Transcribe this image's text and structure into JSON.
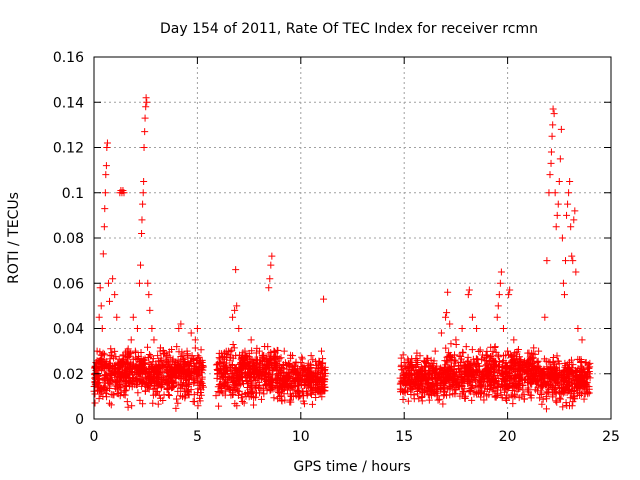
{
  "chart_data": {
    "type": "scatter",
    "title": "Day 154 of 2011, Rate Of TEC Index for receiver rcmn",
    "xlabel": "GPS time / hours",
    "ylabel": "ROTI / TECUs",
    "xlim": [
      0,
      25
    ],
    "ylim": [
      0,
      0.16
    ],
    "xticks": [
      0,
      5,
      10,
      15,
      20,
      25
    ],
    "yticks": [
      0,
      0.02,
      0.04,
      0.06,
      0.08,
      0.1,
      0.12,
      0.14,
      0.16
    ],
    "xtick_labels": [
      "0",
      "5",
      "10",
      "15",
      "20",
      "25"
    ],
    "ytick_labels": [
      "0",
      "0.02",
      "0.04",
      "0.06",
      "0.08",
      "0.1",
      "0.12",
      "0.14",
      "0.16"
    ],
    "grid": true,
    "legend": "none",
    "marker": "plus",
    "color": "#ff0000",
    "series": [
      {
        "points": [
          [
            0.05,
            0.02
          ],
          [
            0.15,
            0.03
          ],
          [
            0.25,
            0.045
          ],
          [
            0.3,
            0.058
          ],
          [
            0.35,
            0.05
          ],
          [
            0.4,
            0.04
          ],
          [
            0.45,
            0.073
          ],
          [
            0.5,
            0.085
          ],
          [
            0.52,
            0.093
          ],
          [
            0.55,
            0.1
          ],
          [
            0.57,
            0.108
          ],
          [
            0.6,
            0.112
          ],
          [
            0.62,
            0.12
          ],
          [
            0.65,
            0.122
          ],
          [
            0.7,
            0.06
          ],
          [
            0.75,
            0.052
          ],
          [
            0.9,
            0.062
          ],
          [
            1.0,
            0.055
          ],
          [
            1.1,
            0.045
          ],
          [
            1.25,
            0.1
          ],
          [
            1.3,
            0.101
          ],
          [
            1.35,
            0.1
          ],
          [
            1.4,
            0.101
          ],
          [
            1.45,
            0.1
          ],
          [
            1.6,
            0.03
          ],
          [
            1.8,
            0.035
          ],
          [
            1.9,
            0.045
          ],
          [
            2.0,
            0.03
          ],
          [
            2.1,
            0.04
          ],
          [
            2.2,
            0.06
          ],
          [
            2.25,
            0.068
          ],
          [
            2.3,
            0.082
          ],
          [
            2.32,
            0.088
          ],
          [
            2.35,
            0.095
          ],
          [
            2.38,
            0.1
          ],
          [
            2.4,
            0.105
          ],
          [
            2.42,
            0.12
          ],
          [
            2.45,
            0.127
          ],
          [
            2.47,
            0.133
          ],
          [
            2.5,
            0.138
          ],
          [
            2.52,
            0.142
          ],
          [
            2.55,
            0.14
          ],
          [
            2.6,
            0.06
          ],
          [
            2.65,
            0.055
          ],
          [
            2.7,
            0.048
          ],
          [
            2.8,
            0.04
          ],
          [
            2.9,
            0.035
          ],
          [
            3.2,
            0.03
          ],
          [
            3.5,
            0.028
          ],
          [
            4.0,
            0.032
          ],
          [
            4.1,
            0.04
          ],
          [
            4.2,
            0.042
          ],
          [
            4.5,
            0.03
          ],
          [
            4.7,
            0.038
          ],
          [
            4.9,
            0.035
          ],
          [
            5.0,
            0.04
          ],
          [
            5.1,
            0.025
          ],
          [
            6.5,
            0.03
          ],
          [
            6.7,
            0.045
          ],
          [
            6.8,
            0.048
          ],
          [
            6.85,
            0.066
          ],
          [
            6.9,
            0.05
          ],
          [
            7.0,
            0.04
          ],
          [
            7.3,
            0.03
          ],
          [
            7.6,
            0.035
          ],
          [
            8.0,
            0.03
          ],
          [
            8.2,
            0.028
          ],
          [
            8.4,
            0.032
          ],
          [
            8.45,
            0.058
          ],
          [
            8.5,
            0.062
          ],
          [
            8.55,
            0.068
          ],
          [
            8.6,
            0.072
          ],
          [
            8.7,
            0.03
          ],
          [
            9.2,
            0.03
          ],
          [
            9.6,
            0.028
          ],
          [
            10.0,
            0.025
          ],
          [
            10.5,
            0.028
          ],
          [
            11.0,
            0.03
          ],
          [
            11.1,
            0.053
          ],
          [
            15.0,
            0.025
          ],
          [
            15.5,
            0.02
          ],
          [
            16.5,
            0.03
          ],
          [
            16.8,
            0.038
          ],
          [
            17.0,
            0.045
          ],
          [
            17.05,
            0.047
          ],
          [
            17.1,
            0.056
          ],
          [
            17.2,
            0.042
          ],
          [
            17.5,
            0.035
          ],
          [
            17.8,
            0.04
          ],
          [
            18.0,
            0.032
          ],
          [
            18.1,
            0.055
          ],
          [
            18.15,
            0.057
          ],
          [
            18.3,
            0.045
          ],
          [
            18.5,
            0.04
          ],
          [
            19.0,
            0.028
          ],
          [
            19.4,
            0.032
          ],
          [
            19.5,
            0.045
          ],
          [
            19.55,
            0.05
          ],
          [
            19.6,
            0.055
          ],
          [
            19.65,
            0.06
          ],
          [
            19.7,
            0.065
          ],
          [
            19.8,
            0.04
          ],
          [
            20.0,
            0.03
          ],
          [
            20.05,
            0.055
          ],
          [
            20.1,
            0.057
          ],
          [
            20.3,
            0.035
          ],
          [
            20.5,
            0.025
          ],
          [
            21.0,
            0.025
          ],
          [
            21.5,
            0.03
          ],
          [
            21.8,
            0.045
          ],
          [
            21.9,
            0.07
          ],
          [
            22.0,
            0.1
          ],
          [
            22.05,
            0.108
          ],
          [
            22.1,
            0.113
          ],
          [
            22.12,
            0.118
          ],
          [
            22.15,
            0.125
          ],
          [
            22.18,
            0.13
          ],
          [
            22.2,
            0.137
          ],
          [
            22.25,
            0.135
          ],
          [
            22.3,
            0.1
          ],
          [
            22.35,
            0.085
          ],
          [
            22.4,
            0.09
          ],
          [
            22.45,
            0.095
          ],
          [
            22.5,
            0.105
          ],
          [
            22.55,
            0.115
          ],
          [
            22.6,
            0.128
          ],
          [
            22.65,
            0.08
          ],
          [
            22.7,
            0.06
          ],
          [
            22.75,
            0.055
          ],
          [
            22.8,
            0.07
          ],
          [
            22.85,
            0.09
          ],
          [
            22.9,
            0.095
          ],
          [
            22.95,
            0.1
          ],
          [
            23.0,
            0.105
          ],
          [
            23.05,
            0.085
          ],
          [
            23.1,
            0.072
          ],
          [
            23.15,
            0.07
          ],
          [
            23.2,
            0.088
          ],
          [
            23.25,
            0.092
          ],
          [
            23.3,
            0.065
          ],
          [
            23.4,
            0.04
          ],
          [
            23.6,
            0.035
          ],
          [
            23.8,
            0.025
          ],
          [
            23.95,
            0.02
          ]
        ],
        "dense_bands": [
          {
            "x": [
              0.0,
              5.3
            ],
            "y_min": 0.003,
            "y_typ": 0.02,
            "y_max": 0.033
          },
          {
            "x": [
              5.9,
              8.9
            ],
            "y_min": 0.004,
            "y_typ": 0.02,
            "y_max": 0.035
          },
          {
            "x": [
              8.9,
              11.2
            ],
            "y_min": 0.005,
            "y_typ": 0.018,
            "y_max": 0.03
          },
          {
            "x": [
              14.8,
              17.0
            ],
            "y_min": 0.004,
            "y_typ": 0.018,
            "y_max": 0.03
          },
          {
            "x": [
              17.0,
              21.4
            ],
            "y_min": 0.005,
            "y_typ": 0.02,
            "y_max": 0.035
          },
          {
            "x": [
              21.4,
              24.0
            ],
            "y_min": 0.003,
            "y_typ": 0.018,
            "y_max": 0.03
          }
        ]
      }
    ]
  }
}
